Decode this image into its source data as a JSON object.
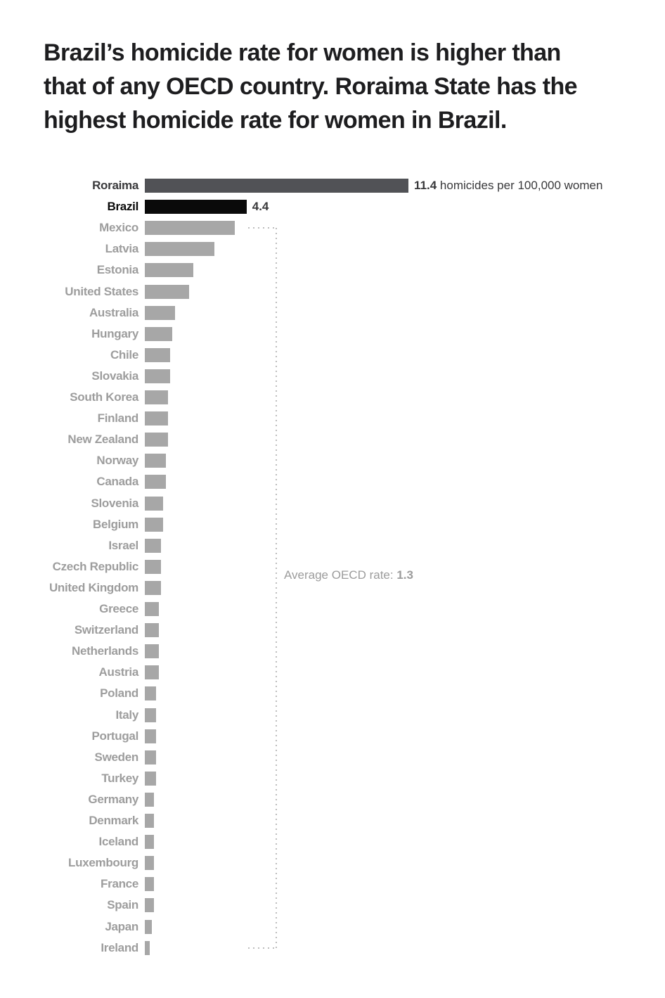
{
  "title": {
    "text": "Brazil’s homicide rate for women is higher than that of any OECD country. Roraima State has the highest homicide rate for women in Brazil.",
    "lines": [
      "Brazil’s homicide rate for women is higher than",
      "that of any OECD country. Roraima State has the",
      "highest homicide rate for women in Brazil."
    ]
  },
  "chart_data": {
    "type": "bar",
    "orientation": "horizontal",
    "unit": "homicides per 100,000 women",
    "categories": [
      "Roraima",
      "Brazil",
      "Mexico",
      "Latvia",
      "Estonia",
      "United States",
      "Australia",
      "Hungary",
      "Chile",
      "Slovakia",
      "South Korea",
      "Finland",
      "New Zealand",
      "Norway",
      "Canada",
      "Slovenia",
      "Belgium",
      "Israel",
      "Czech Republic",
      "United Kingdom",
      "Greece",
      "Switzerland",
      "Netherlands",
      "Austria",
      "Poland",
      "Italy",
      "Portugal",
      "Sweden",
      "Turkey",
      "Germany",
      "Denmark",
      "Iceland",
      "Luxembourg",
      "France",
      "Spain",
      "Japan",
      "Ireland"
    ],
    "values": [
      11.4,
      4.4,
      3.9,
      3.0,
      2.1,
      1.9,
      1.3,
      1.2,
      1.1,
      1.1,
      1.0,
      1.0,
      1.0,
      0.9,
      0.9,
      0.8,
      0.8,
      0.7,
      0.7,
      0.7,
      0.6,
      0.6,
      0.6,
      0.6,
      0.5,
      0.5,
      0.5,
      0.5,
      0.5,
      0.4,
      0.4,
      0.4,
      0.4,
      0.4,
      0.4,
      0.3,
      0.2
    ],
    "xlim": [
      0,
      11.4
    ],
    "grid": false,
    "legend": false,
    "annotations": {
      "roraima": {
        "value": "11.4",
        "suffix": " homicides per 100,000 women"
      },
      "brazil": {
        "value": "4.4"
      },
      "oecd_average": {
        "label": "Average OECD rate: ",
        "value": "1.3"
      }
    }
  },
  "colors": {
    "background": "#ffffff",
    "title_text": "#1d1d1f",
    "roraima_bar": "#515256",
    "brazil_bar": "#0a0a0a",
    "oecd_bar": "#a7a7a7",
    "roraima_label": "#39393b",
    "brazil_label": "#0a0a0a",
    "oecd_label": "#9d9d9d",
    "annotation_text": "#39393b",
    "average_text": "#9c9c9c",
    "dotted_line": "#bdbdbd"
  }
}
